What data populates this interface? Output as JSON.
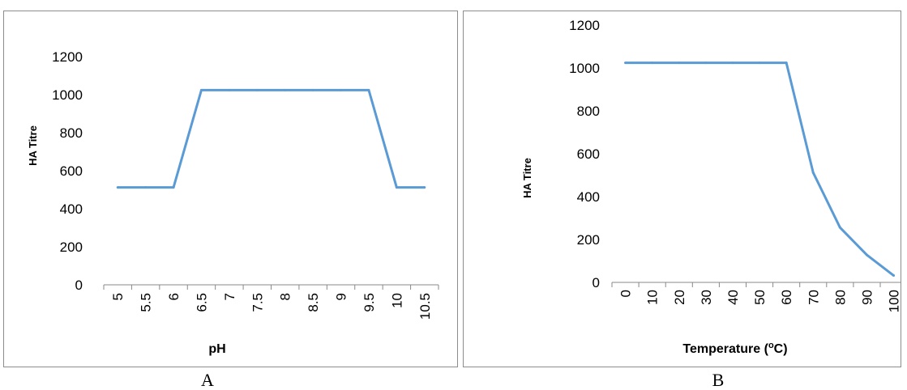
{
  "chart_data": [
    {
      "type": "line",
      "panel_label": "A",
      "xlabel": "pH",
      "ylabel": "HA Titre",
      "categories": [
        "5",
        "5.5",
        "6",
        "6.5",
        "7",
        "7.5",
        "8",
        "8.5",
        "9",
        "9.5",
        "10",
        "10.5"
      ],
      "values": [
        512,
        512,
        512,
        1024,
        1024,
        1024,
        1024,
        1024,
        1024,
        1024,
        512,
        512
      ],
      "ylim": [
        0,
        1200
      ],
      "yticks": [
        0,
        200,
        400,
        600,
        800,
        1000,
        1200
      ],
      "line_color": "#5b9bd5",
      "grid": false
    },
    {
      "type": "line",
      "panel_label": "B",
      "xlabel": "Temperature (°C)",
      "xlabel_main": "Temperature (",
      "xlabel_sup": "o",
      "xlabel_end": "C)",
      "ylabel": "HA Titre",
      "categories": [
        "0",
        "10",
        "20",
        "30",
        "40",
        "50",
        "60",
        "70",
        "80",
        "90",
        "100"
      ],
      "values": [
        1024,
        1024,
        1024,
        1024,
        1024,
        1024,
        1024,
        512,
        256,
        128,
        32
      ],
      "ylim": [
        0,
        1200
      ],
      "yticks": [
        0,
        200,
        400,
        600,
        800,
        1000,
        1200
      ],
      "line_color": "#5b9bd5",
      "grid": false
    }
  ]
}
